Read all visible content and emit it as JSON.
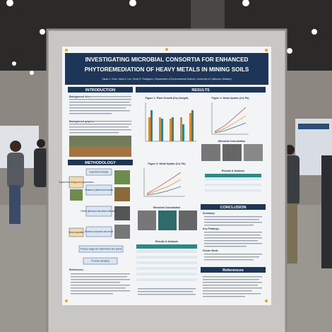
{
  "poster": {
    "title": [
      "INVESTIGATING MICROBIAL CONSORTIA FOR ENHANCED",
      "PHYTOREMEDIATION OF HEAVY METALS IN MINING SOILS"
    ],
    "authors": "Sarah J. Chen, Mark A. Lee, Emily R. Rodriguez | Department of Environmental Science, University of California, Berkeley",
    "introduction": {
      "heading": "INTRODUCTION",
      "items": [
        "Background info:",
        "Background graphs:"
      ]
    },
    "methodology": {
      "heading": "METHODOLOGY",
      "steps": [
        "Experiment Design",
        "Phases of plants and results",
        "Pilots' plant and microbial cultivation",
        "Process enzymes and result",
        "Process stage and determined and plants",
        "Process sampling"
      ],
      "side_labels": [
        "Experiment design and parameters",
        "Step evaluation"
      ]
    },
    "results": {
      "heading": "RESULTS",
      "figures": [
        "Figure 1: Plant Growth (Dry Weight)",
        "Figure 2: Metal Uptake (Cd, Pb)",
        "Figure 3: Metal Uptake (Cd, Pb)"
      ],
      "micro_titles": [
        "Microbial Colonization",
        "Microbial Colonization"
      ],
      "tables": [
        "Results & Analysis",
        "Results & Analysis"
      ]
    },
    "conclusion": {
      "heading": "CONCLUSION",
      "items": [
        "Summary:",
        "Key Findings:",
        "Future Work:"
      ]
    },
    "references": {
      "heading": "References",
      "left_heading": "References:"
    }
  }
}
